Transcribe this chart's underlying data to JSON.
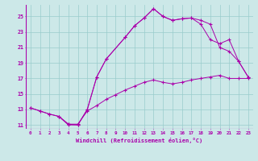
{
  "xlabel": "Windchill (Refroidissement éolien,°C)",
  "background_color": "#cce8e8",
  "grid_color": "#99cccc",
  "line_color": "#aa00aa",
  "xlim": [
    -0.5,
    23.5
  ],
  "ylim": [
    10.5,
    26.5
  ],
  "yticks": [
    11,
    13,
    15,
    17,
    19,
    21,
    23,
    25
  ],
  "xticks": [
    0,
    1,
    2,
    3,
    4,
    5,
    6,
    7,
    8,
    9,
    10,
    11,
    12,
    13,
    14,
    15,
    16,
    17,
    18,
    19,
    20,
    21,
    22,
    23
  ],
  "line1_x": [
    0,
    1,
    2,
    3,
    4,
    5,
    6,
    7,
    8,
    9,
    10,
    11,
    12,
    13,
    14,
    15,
    16,
    17,
    18,
    19,
    20,
    21,
    22,
    23
  ],
  "line1_y": [
    13.2,
    12.8,
    12.4,
    12.1,
    11.1,
    11.1,
    12.8,
    13.5,
    14.3,
    14.9,
    15.5,
    16.0,
    16.5,
    16.8,
    16.5,
    16.3,
    16.5,
    16.8,
    17.0,
    17.2,
    17.4,
    17.0,
    17.0,
    17.0
  ],
  "line2_x": [
    0,
    1,
    2,
    3,
    4,
    5,
    6,
    7,
    8,
    10,
    11,
    12,
    13,
    14,
    15,
    16,
    17,
    18,
    19,
    20,
    21,
    22,
    23
  ],
  "line2_y": [
    13.2,
    12.8,
    12.4,
    12.1,
    11.1,
    11.0,
    13.0,
    17.2,
    19.5,
    22.3,
    23.8,
    24.8,
    26.0,
    25.0,
    24.5,
    24.7,
    24.8,
    24.5,
    24.0,
    21.0,
    20.5,
    19.2,
    17.2
  ],
  "line3_x": [
    3,
    4,
    5,
    6,
    7,
    8,
    10,
    11,
    12,
    13,
    14,
    15,
    16,
    17,
    18,
    19,
    20,
    21,
    22,
    23
  ],
  "line3_y": [
    12.1,
    11.0,
    11.0,
    13.0,
    17.2,
    19.5,
    22.3,
    23.8,
    24.8,
    26.0,
    25.0,
    24.5,
    24.7,
    24.8,
    24.0,
    22.0,
    21.5,
    22.0,
    19.2,
    17.2
  ]
}
